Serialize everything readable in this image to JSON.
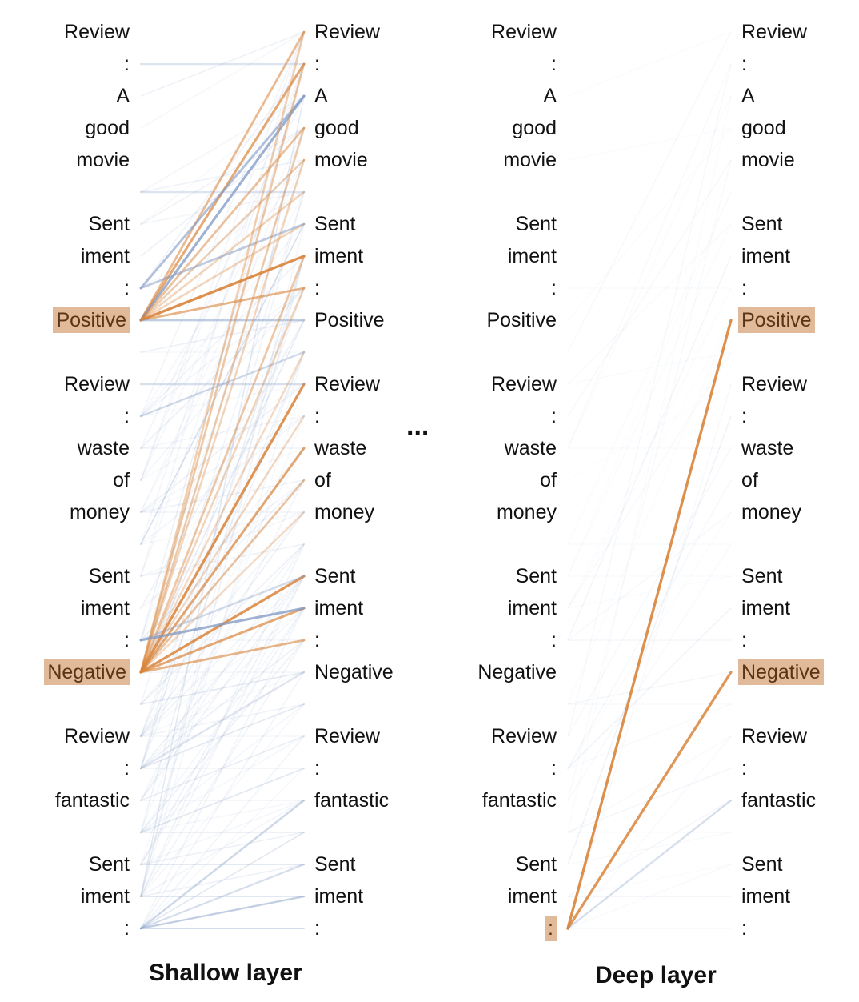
{
  "tokens": [
    "Review",
    ":",
    "A",
    "good",
    "movie",
    "",
    "Sent",
    "iment",
    ":",
    "Positive",
    "",
    "Review",
    ":",
    "waste",
    "of",
    "money",
    "",
    "Sent",
    "iment",
    ":",
    "Negative",
    "",
    "Review",
    ":",
    "fantastic",
    "",
    "Sent",
    "iment",
    ":"
  ],
  "ellipsis": "...",
  "panels": [
    {
      "caption": "Shallow layer",
      "left_highlight": [
        9,
        20
      ],
      "right_highlight": [],
      "edges": [
        {
          "from": 9,
          "to": 0,
          "color": "orange",
          "weight": 0.55
        },
        {
          "from": 9,
          "to": 1,
          "color": "orange",
          "weight": 0.7
        },
        {
          "from": 9,
          "to": 2,
          "color": "blue",
          "weight": 0.75
        },
        {
          "from": 9,
          "to": 3,
          "color": "orange",
          "weight": 0.5
        },
        {
          "from": 9,
          "to": 4,
          "color": "orange",
          "weight": 0.35
        },
        {
          "from": 9,
          "to": 5,
          "color": "orange",
          "weight": 0.35
        },
        {
          "from": 9,
          "to": 7,
          "color": "orange",
          "weight": 0.9
        },
        {
          "from": 9,
          "to": 8,
          "color": "orange",
          "weight": 0.6
        },
        {
          "from": 9,
          "to": 9,
          "color": "blue",
          "weight": 0.45
        },
        {
          "from": 9,
          "to": 6,
          "color": "orange",
          "weight": 0.35
        },
        {
          "from": 8,
          "to": 2,
          "color": "blue",
          "weight": 0.6
        },
        {
          "from": 8,
          "to": 6,
          "color": "blue",
          "weight": 0.5
        },
        {
          "from": 20,
          "to": 0,
          "color": "orange",
          "weight": 0.4
        },
        {
          "from": 20,
          "to": 1,
          "color": "orange",
          "weight": 0.45
        },
        {
          "from": 20,
          "to": 3,
          "color": "orange",
          "weight": 0.4
        },
        {
          "from": 20,
          "to": 4,
          "color": "orange",
          "weight": 0.35
        },
        {
          "from": 20,
          "to": 7,
          "color": "orange",
          "weight": 0.45
        },
        {
          "from": 20,
          "to": 8,
          "color": "orange",
          "weight": 0.35
        },
        {
          "from": 20,
          "to": 10,
          "color": "orange",
          "weight": 0.3
        },
        {
          "from": 20,
          "to": 11,
          "color": "orange",
          "weight": 0.85
        },
        {
          "from": 20,
          "to": 13,
          "color": "orange",
          "weight": 0.7
        },
        {
          "from": 20,
          "to": 14,
          "color": "orange",
          "weight": 0.45
        },
        {
          "from": 20,
          "to": 17,
          "color": "orange",
          "weight": 0.85
        },
        {
          "from": 20,
          "to": 18,
          "color": "orange",
          "weight": 0.7
        },
        {
          "from": 20,
          "to": 19,
          "color": "orange",
          "weight": 0.6
        },
        {
          "from": 20,
          "to": 12,
          "color": "orange",
          "weight": 0.3
        },
        {
          "from": 20,
          "to": 15,
          "color": "orange",
          "weight": 0.3
        },
        {
          "from": 19,
          "to": 18,
          "color": "blue",
          "weight": 0.75
        },
        {
          "from": 19,
          "to": 17,
          "color": "blue",
          "weight": 0.35
        },
        {
          "from": 28,
          "to": 24,
          "color": "blue",
          "weight": 0.35
        },
        {
          "from": 28,
          "to": 27,
          "color": "blue",
          "weight": 0.35
        },
        {
          "from": 28,
          "to": 26,
          "color": "blue",
          "weight": 0.25
        },
        {
          "from": 23,
          "to": 20,
          "color": "blue",
          "weight": 0.25
        },
        {
          "from": 11,
          "to": 11,
          "color": "blue",
          "weight": 0.3
        },
        {
          "from": 12,
          "to": 10,
          "color": "blue",
          "weight": 0.3
        },
        {
          "from": 1,
          "to": 1,
          "color": "blue",
          "weight": 0.25
        },
        {
          "from": 5,
          "to": 5,
          "color": "blue",
          "weight": 0.25
        }
      ]
    },
    {
      "caption": "Deep layer",
      "left_highlight": [
        28
      ],
      "right_highlight": [
        9,
        20
      ],
      "edges": [
        {
          "from": 28,
          "to": 9,
          "color": "orange",
          "weight": 0.9
        },
        {
          "from": 28,
          "to": 20,
          "color": "orange",
          "weight": 0.85
        },
        {
          "from": 28,
          "to": 24,
          "color": "blue",
          "weight": 0.3
        }
      ]
    }
  ],
  "colors": {
    "orange": "#d9843a",
    "blue": "#7f98c4",
    "highlight": "#e1bb99"
  }
}
